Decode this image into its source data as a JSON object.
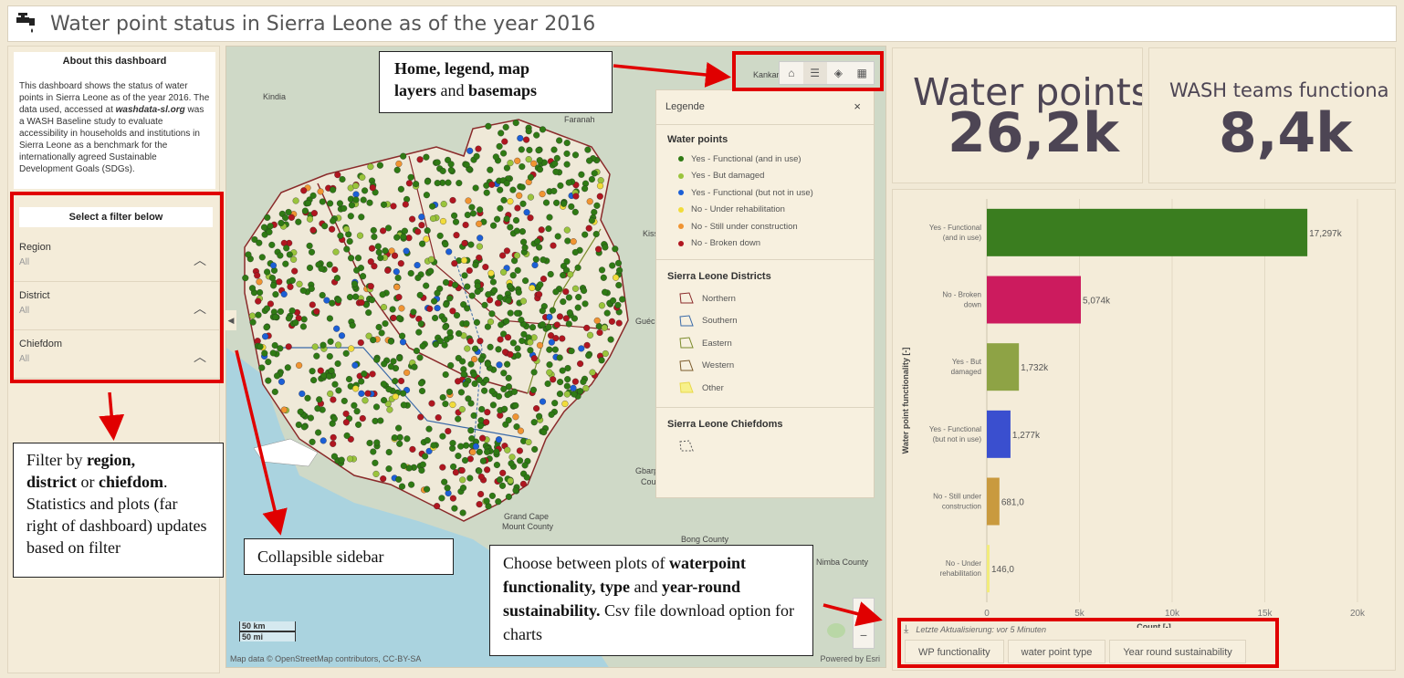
{
  "header": {
    "title": "Water point status in Sierra Leone as of the year 2016",
    "logo_icon": "faucet-icon"
  },
  "sidebar": {
    "about_title": "About this dashboard",
    "about_text_1": "This dashboard shows the status of water points in Sierra Leone as of the year 2016.  The data used, accessed at ",
    "about_link": "washdata-sl.org",
    "about_text_2": " was a WASH Baseline study to evaluate accessibility in households and institutions in Sierra Leone as a benchmark for the internationally agreed Sustainable Development Goals (SDGs).",
    "filter_title": "Select a filter below",
    "filters": [
      {
        "label": "Region",
        "value": "All"
      },
      {
        "label": "District",
        "value": "All"
      },
      {
        "label": "Chiefdom",
        "value": "All"
      }
    ]
  },
  "map": {
    "cities": [
      "Kankan",
      "Kindia",
      "Faranah",
      "Kissi",
      "Guéc",
      "Gbarp",
      "Cou",
      "Grand Cape",
      "Mount County",
      "Bong County",
      "Nimba County"
    ],
    "attribution": "Map data © OpenStreetMap contributors, CC-BY-SA",
    "powered_by": "Powered by Esri",
    "scale_km": "50 km",
    "scale_mi": "50 mi",
    "zoom_in": "+",
    "zoom_out": "−",
    "tools": [
      "home-icon",
      "legend-icon",
      "layers-icon",
      "basemap-icon"
    ]
  },
  "legend": {
    "title": "Legende",
    "close": "×",
    "water_points_title": "Water points",
    "water_points": [
      {
        "label": "Yes - Functional (and in use)",
        "color": "#2f7a14"
      },
      {
        "label": "Yes - But damaged",
        "color": "#9ac43c"
      },
      {
        "label": "Yes - Functional (but not in use)",
        "color": "#1c5fd6"
      },
      {
        "label": "No - Under rehabilitation",
        "color": "#f1dc3a"
      },
      {
        "label": "No - Still under construction",
        "color": "#f09432"
      },
      {
        "label": "No - Broken down",
        "color": "#b01620"
      }
    ],
    "districts_title": "Sierra Leone Districts",
    "districts": [
      {
        "label": "Northern",
        "color": "#8a2a2a"
      },
      {
        "label": "Southern",
        "color": "#3a6aa8"
      },
      {
        "label": "Eastern",
        "color": "#7a8a2a"
      },
      {
        "label": "Western",
        "color": "#7a5a2a"
      },
      {
        "label": "Other",
        "color": "#e8d84a"
      }
    ],
    "chiefdoms_title": "Sierra Leone Chiefdoms"
  },
  "cards": [
    {
      "title": "Water points",
      "value": "26,2k"
    },
    {
      "title": "WASH teams functiona",
      "value": "8,4k"
    }
  ],
  "chart_data": {
    "type": "bar",
    "orientation": "horizontal",
    "categories": [
      "Yes - Functional (and in use)",
      "No - Broken down",
      "Yes - But damaged",
      "Yes - Functional (but not in use)",
      "No - Still under construction",
      "No - Under rehabilitation"
    ],
    "category_lines": [
      [
        "Yes - Functional",
        "(and in use)"
      ],
      [
        "No - Broken",
        "down"
      ],
      [
        "Yes - But",
        "damaged"
      ],
      [
        "Yes - Functional",
        "(but not in use)"
      ],
      [
        "No - Still under",
        "construction"
      ],
      [
        "No - Under",
        "rehabilitation"
      ]
    ],
    "values": [
      17297,
      5074,
      1732,
      1277,
      681,
      146
    ],
    "value_labels": [
      "17,297k",
      "5,074k",
      "1,732k",
      "1,277k",
      "681,0",
      "146,0"
    ],
    "colors": [
      "#3a7d1f",
      "#cc1b5e",
      "#8ea345",
      "#3a4fcf",
      "#c99a3e",
      "#f2ec7a"
    ],
    "xlim": [
      0,
      20000
    ],
    "xticks": [
      0,
      5000,
      10000,
      15000,
      20000
    ],
    "xtick_labels": [
      "0",
      "5k",
      "10k",
      "15k",
      "20k"
    ],
    "xlabel": "Count [-]",
    "ylabel": "Water point functionality [-]",
    "grid": true
  },
  "chart_footer": {
    "download_icon": "download-icon",
    "updated": "Letzte Aktualisierung: vor 5 Minuten"
  },
  "tabs": [
    "WP functionality",
    "water point type",
    "Year round sustainability"
  ],
  "annotations": {
    "tools_prefix": "Home, legend, map",
    "tools_mid": "layers",
    "tools_and": " and ",
    "tools_basemaps": "basemaps",
    "filter_a": "Filter by ",
    "filter_region": "region,",
    "filter_district": "district",
    "filter_or": " or ",
    "filter_chiefdom": "chiefdom",
    "filter_rest": ". Statistics and plots (far right of dashboard) updates based on filter",
    "sidebar_note": "Collapsible sidebar",
    "chart_a": "Choose between plots of ",
    "chart_b": "waterpoint functionality, type",
    "chart_c": " and ",
    "chart_d": "year-round sustainability.",
    "chart_e": " Csv file download option for charts"
  }
}
